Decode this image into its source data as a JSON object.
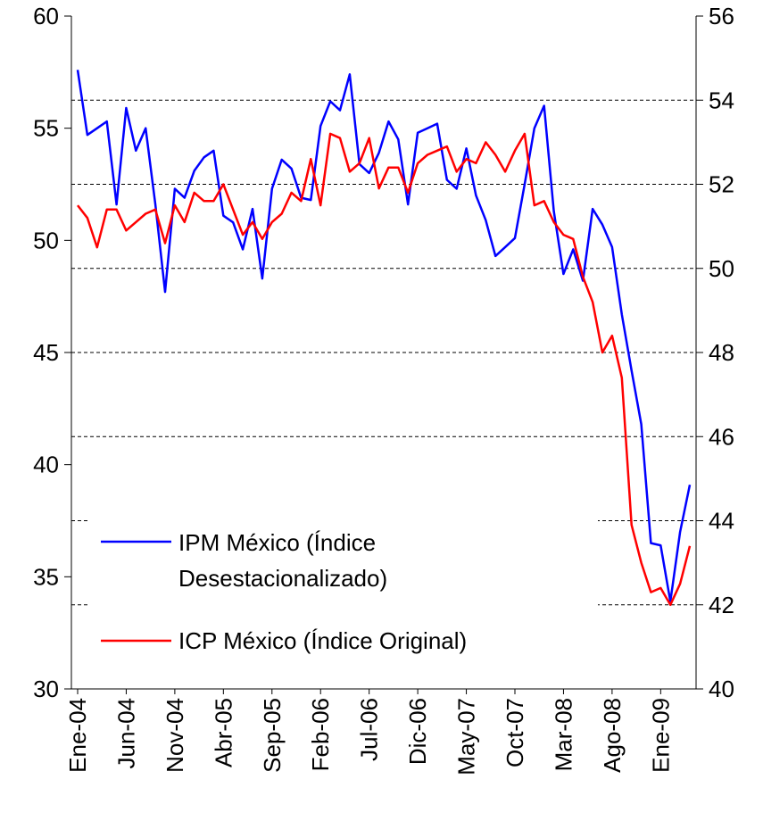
{
  "chart_data": {
    "type": "line",
    "categories": [
      "Ene-04",
      null,
      null,
      null,
      null,
      "Jun-04",
      null,
      null,
      null,
      null,
      "Nov-04",
      null,
      null,
      null,
      null,
      "Abr-05",
      null,
      null,
      null,
      null,
      "Sep-05",
      null,
      null,
      null,
      null,
      "Feb-06",
      null,
      null,
      null,
      null,
      "Jul-06",
      null,
      null,
      null,
      null,
      "Dic-06",
      null,
      null,
      null,
      null,
      "May-07",
      null,
      null,
      null,
      null,
      "Oct-07",
      null,
      null,
      null,
      null,
      "Mar-08",
      null,
      null,
      null,
      null,
      "Ago-08",
      null,
      null,
      null,
      null,
      "Ene-09",
      null,
      null,
      null
    ],
    "series": [
      {
        "name": "IPM México (Índice Desestacionalizado)",
        "color": "#0000ff",
        "axis": "y",
        "values": [
          57.6,
          54.7,
          55.0,
          55.3,
          51.6,
          55.9,
          54.0,
          55.0,
          51.6,
          47.7,
          52.3,
          51.9,
          53.1,
          53.7,
          54.0,
          51.1,
          50.8,
          49.6,
          51.4,
          48.3,
          52.3,
          53.6,
          53.2,
          51.9,
          51.8,
          55.1,
          56.2,
          55.8,
          57.4,
          53.4,
          53.0,
          53.9,
          55.3,
          54.5,
          51.6,
          54.8,
          55.0,
          55.2,
          52.7,
          52.3,
          54.1,
          52.0,
          50.9,
          49.3,
          49.7,
          50.1,
          52.5,
          55.0,
          56.0,
          51.3,
          48.5,
          49.6,
          48.2,
          51.4,
          50.7,
          49.7,
          46.7,
          44.2,
          41.8,
          36.5,
          36.4,
          33.9,
          37.0,
          39.1
        ]
      },
      {
        "name": "ICP México (Índice Original)",
        "color": "#ff0000",
        "axis": "y2",
        "values": [
          51.5,
          51.2,
          50.5,
          51.4,
          51.4,
          50.9,
          51.1,
          51.3,
          51.4,
          50.6,
          51.5,
          51.1,
          51.8,
          51.6,
          51.6,
          52.0,
          51.4,
          50.8,
          51.1,
          50.7,
          51.1,
          51.3,
          51.8,
          51.6,
          52.6,
          51.5,
          53.2,
          53.1,
          52.3,
          52.5,
          53.1,
          51.9,
          52.4,
          52.4,
          51.8,
          52.5,
          52.7,
          52.8,
          52.9,
          52.3,
          52.6,
          52.5,
          53.0,
          52.7,
          52.3,
          52.8,
          53.2,
          51.5,
          51.6,
          51.1,
          50.8,
          50.7,
          49.8,
          49.2,
          48.0,
          48.4,
          47.4,
          43.9,
          43.0,
          42.3,
          42.4,
          42.0,
          42.5,
          43.4
        ]
      }
    ],
    "ylim": [
      30,
      60
    ],
    "yticks": [
      30,
      35,
      40,
      45,
      50,
      55,
      60
    ],
    "y2lim": [
      40,
      56
    ],
    "y2ticks": [
      40,
      42,
      44,
      46,
      48,
      50,
      52,
      54,
      56
    ],
    "grid": "y2"
  }
}
